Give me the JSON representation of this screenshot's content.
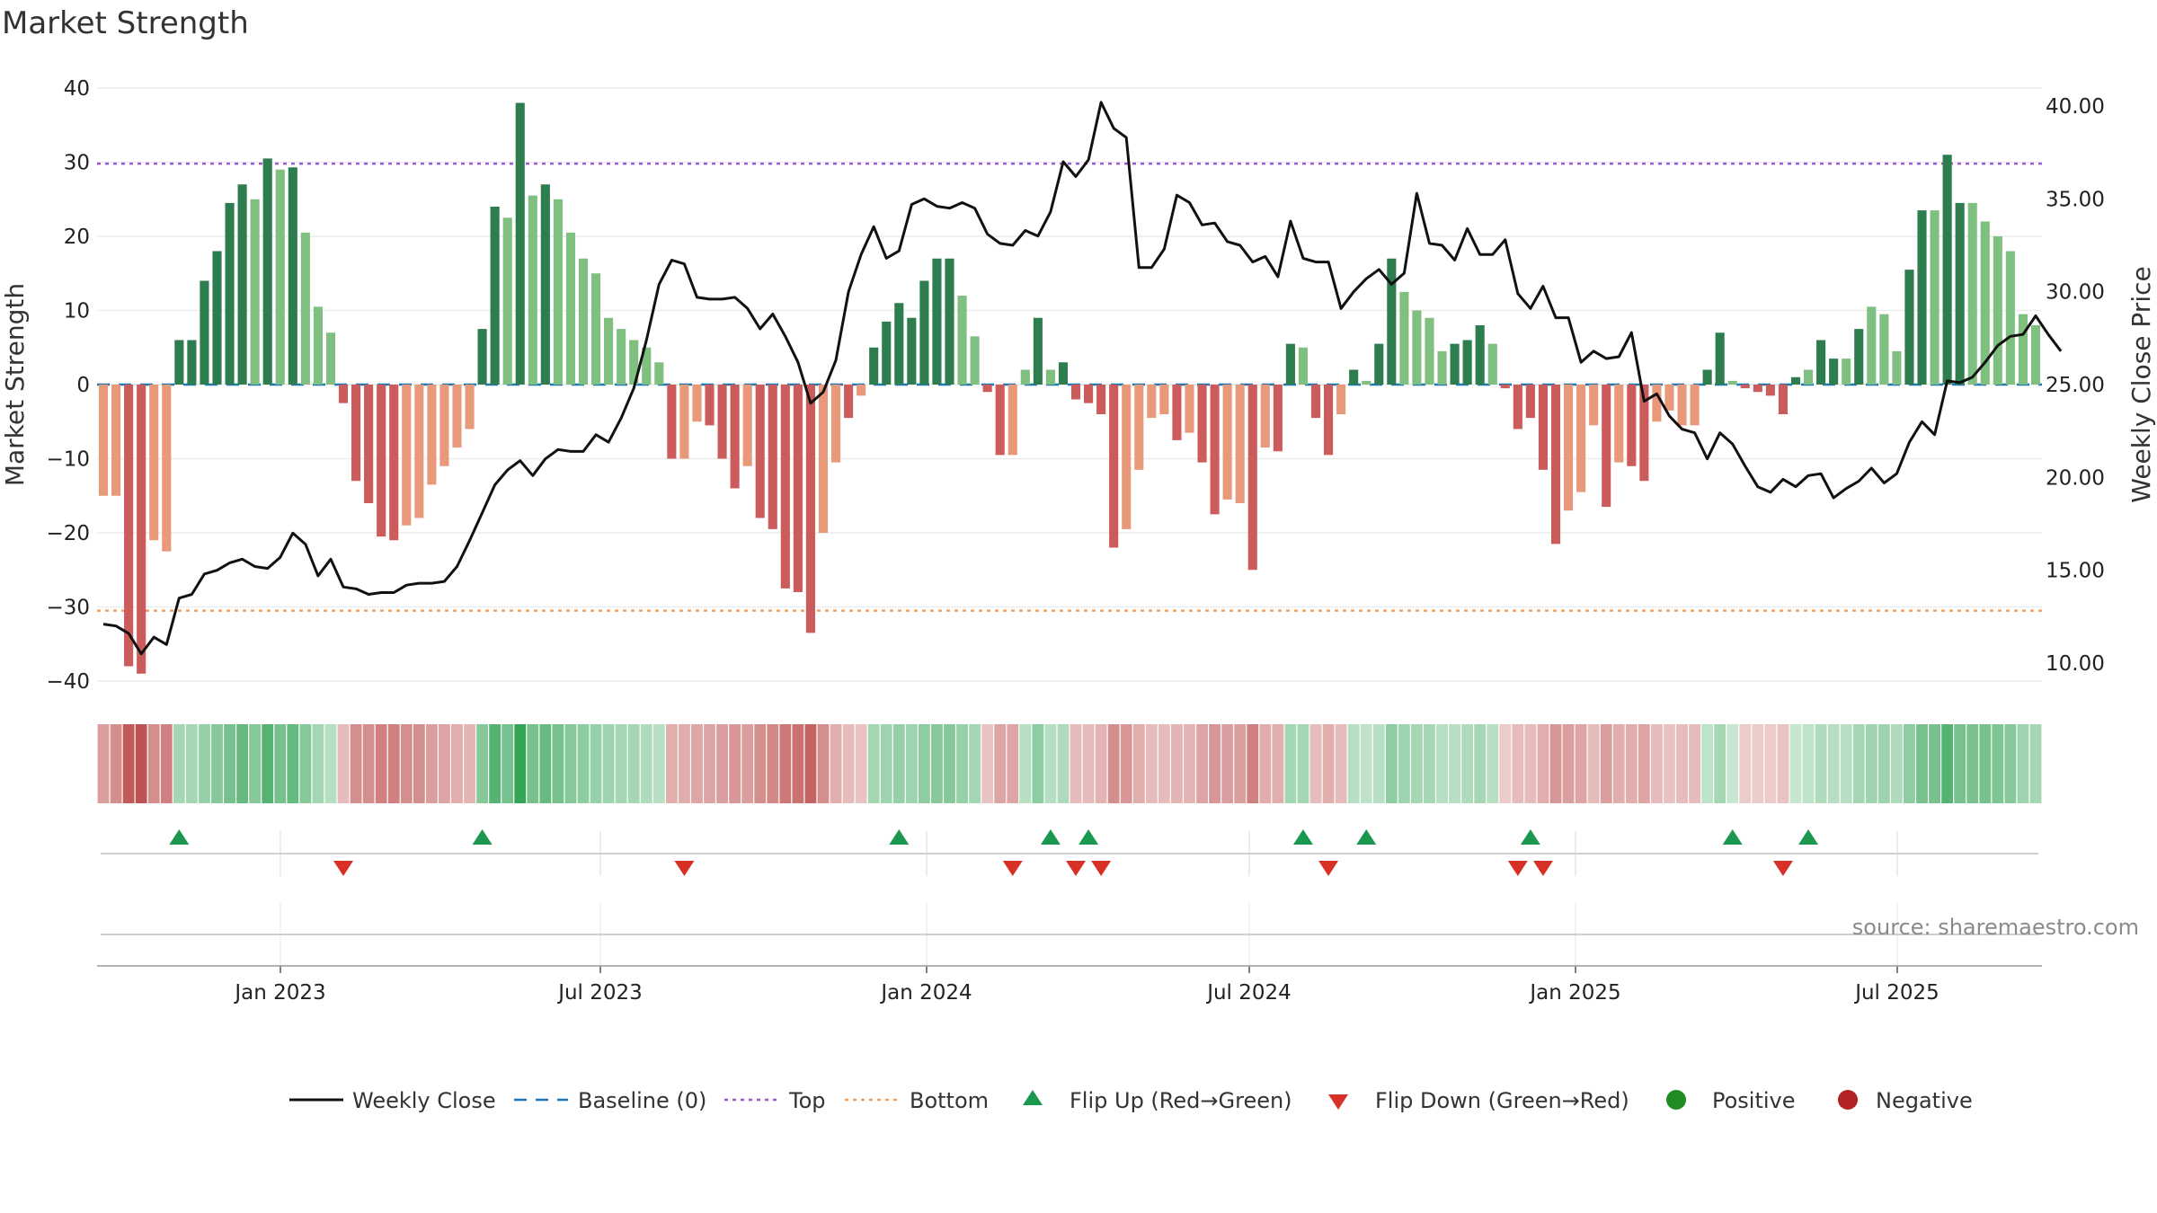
{
  "title": "Market Strength",
  "source_text": "source: sharemaestro.com",
  "colors": {
    "green_dark": "#2e7d4f",
    "green_light": "#7fbf7f",
    "red_dark": "#cc5c5c",
    "red_light": "#e8997a",
    "top_line": "#9b59d0",
    "bottom_line": "#f0a060",
    "baseline": "#1f77b4",
    "price_line": "#111111",
    "flip_up": "#1a9850",
    "flip_down": "#d73027",
    "positive": "#228b22",
    "negative": "#b22222"
  },
  "chart_data": {
    "type": "bar",
    "title": "Market Strength",
    "ylabel": "Market Strength",
    "y2label": "Weekly Close Price",
    "ylim": [
      -40,
      40
    ],
    "y2lim": [
      10,
      40
    ],
    "yticks": [
      "40",
      "30",
      "20",
      "10",
      "0",
      "−10",
      "−20",
      "−30",
      "−40"
    ],
    "y2ticks": [
      "40.00",
      "35.00",
      "30.00",
      "25.00",
      "20.00",
      "15.00",
      "10.00"
    ],
    "xticks": [
      "Jan 2023",
      "Jul 2023",
      "Jan 2024",
      "Jul 2024",
      "Jan 2025",
      "Jul 2025"
    ],
    "top_level": 29.8,
    "bottom_level": -30.5,
    "strength": [
      -15,
      -15,
      -38,
      -39,
      -21,
      -22.5,
      6,
      6,
      14,
      18,
      24.5,
      27,
      25,
      30.5,
      29,
      29.3,
      20.5,
      10.5,
      7,
      -2.5,
      -13,
      -16,
      -20.5,
      -21,
      -19,
      -18,
      -13.5,
      -11,
      -8.5,
      -6,
      7.5,
      24,
      22.5,
      38,
      25.5,
      27,
      25,
      20.5,
      17,
      15,
      9,
      7.5,
      6,
      5,
      3,
      -10,
      -10,
      -5,
      -5.5,
      -10,
      -14,
      -11,
      -18,
      -19.5,
      -27.5,
      -28,
      -33.5,
      -20,
      -10.5,
      -4.5,
      -1.5,
      5,
      8.5,
      11,
      9,
      14,
      17,
      17,
      12,
      6.5,
      -1,
      -9.5,
      -9.5,
      2,
      9,
      2,
      3,
      -2,
      -2.5,
      -4,
      -22,
      -19.5,
      -11.5,
      -4.5,
      -4,
      -7.5,
      -6.5,
      -10.5,
      -17.5,
      -15.5,
      -16,
      -25,
      -8.5,
      -9,
      5.5,
      5,
      -4.5,
      -9.5,
      -4,
      2,
      0.5,
      5.5,
      17,
      12.5,
      10,
      9,
      4.5,
      5.5,
      6,
      8,
      5.5,
      -0.5,
      -6,
      -4.5,
      -11.5,
      -21.5,
      -17,
      -14.5,
      -5.5,
      -16.5,
      -10.5,
      -11,
      -13,
      -5,
      -3.5,
      -5.5,
      -5.5,
      2,
      7,
      0.5,
      -0.5,
      -1,
      -1.5,
      -4,
      1,
      2,
      6,
      3.5,
      3.5,
      7.5,
      10.5,
      9.5,
      4.5,
      15.5,
      23.5,
      23.5,
      31,
      24.5,
      24.5,
      22,
      20,
      18,
      9.5,
      8
    ],
    "intensity": [
      "l",
      "l",
      "d",
      "d",
      "l",
      "l",
      "d",
      "d",
      "d",
      "d",
      "d",
      "d",
      "l",
      "d",
      "l",
      "d",
      "l",
      "l",
      "l",
      "d",
      "d",
      "d",
      "d",
      "d",
      "l",
      "l",
      "l",
      "l",
      "l",
      "l",
      "d",
      "d",
      "l",
      "d",
      "l",
      "d",
      "l",
      "l",
      "l",
      "l",
      "l",
      "l",
      "l",
      "l",
      "l",
      "d",
      "l",
      "l",
      "d",
      "d",
      "d",
      "l",
      "d",
      "d",
      "d",
      "d",
      "d",
      "l",
      "l",
      "d",
      "l",
      "d",
      "d",
      "d",
      "d",
      "d",
      "d",
      "d",
      "l",
      "l",
      "d",
      "d",
      "l",
      "l",
      "d",
      "l",
      "d",
      "d",
      "d",
      "d",
      "d",
      "l",
      "l",
      "l",
      "l",
      "d",
      "l",
      "d",
      "d",
      "l",
      "l",
      "d",
      "l",
      "d",
      "d",
      "l",
      "d",
      "d",
      "l",
      "d",
      "l",
      "d",
      "d",
      "l",
      "l",
      "l",
      "l",
      "d",
      "d",
      "d",
      "l",
      "d",
      "d",
      "d",
      "d",
      "d",
      "l",
      "l",
      "l",
      "d",
      "l",
      "d",
      "d",
      "l",
      "l",
      "l",
      "l",
      "d",
      "d",
      "l",
      "d",
      "d",
      "d",
      "d",
      "d",
      "l",
      "d",
      "d",
      "l",
      "d",
      "l",
      "l",
      "l",
      "d",
      "d",
      "l",
      "d",
      "d",
      "l",
      "l",
      "l",
      "l",
      "l",
      "l",
      "l",
      "l"
    ],
    "price": [
      12.1,
      12.0,
      11.6,
      10.5,
      11.4,
      11.0,
      13.5,
      13.7,
      14.8,
      15.0,
      15.4,
      15.6,
      15.2,
      15.1,
      15.7,
      17.0,
      16.4,
      14.7,
      15.6,
      14.1,
      14.0,
      13.7,
      13.8,
      13.8,
      14.2,
      14.3,
      14.3,
      14.4,
      15.2,
      16.6,
      18.1,
      19.6,
      20.4,
      20.9,
      20.1,
      21.0,
      21.5,
      21.4,
      21.4,
      22.3,
      21.9,
      23.2,
      24.8,
      27.4,
      30.4,
      31.7,
      31.5,
      29.7,
      29.6,
      29.6,
      29.7,
      29.1,
      28.0,
      28.8,
      27.6,
      26.2,
      24.0,
      24.6,
      26.3,
      30.0,
      32.0,
      33.5,
      31.8,
      32.2,
      34.7,
      35.0,
      34.6,
      34.5,
      34.8,
      34.5,
      33.1,
      32.6,
      32.5,
      33.3,
      33.0,
      34.3,
      37.0,
      36.2,
      37.1,
      40.2,
      38.8,
      38.3,
      31.3,
      31.3,
      32.3,
      35.2,
      34.8,
      33.6,
      33.7,
      32.7,
      32.5,
      31.6,
      31.9,
      30.8,
      33.8,
      31.8,
      31.6,
      31.6,
      29.1,
      30.0,
      30.7,
      31.2,
      30.4,
      31.0,
      35.3,
      32.6,
      32.5,
      31.7,
      33.4,
      32.0,
      32.0,
      32.8,
      29.9,
      29.1,
      30.3,
      28.6,
      28.6,
      26.2,
      26.8,
      26.4,
      26.5,
      27.8,
      24.1,
      24.5,
      23.3,
      22.6,
      22.4,
      21.0,
      22.4,
      21.8,
      20.6,
      19.5,
      19.2,
      19.9,
      19.5,
      20.1,
      20.2,
      18.9,
      19.4,
      19.8,
      20.5,
      19.7,
      20.2,
      21.9,
      23.0,
      22.3,
      25.2,
      25.1,
      25.4,
      26.2,
      27.1,
      27.6,
      27.7,
      28.7,
      27.7,
      26.8
    ],
    "flip_up_weeks": [
      6,
      30,
      63,
      75,
      78,
      95,
      100,
      113,
      129,
      135
    ],
    "flip_down_weeks": [
      19,
      46,
      72,
      77,
      79,
      97,
      112,
      114,
      133
    ],
    "heatmap": [
      0.4,
      0.5,
      0.85,
      0.9,
      0.5,
      0.6,
      0.3,
      0.3,
      0.4,
      0.5,
      0.6,
      0.7,
      0.5,
      0.8,
      0.6,
      0.7,
      0.5,
      0.3,
      0.2,
      0.2,
      0.5,
      0.5,
      0.6,
      0.6,
      0.5,
      0.5,
      0.4,
      0.35,
      0.3,
      0.25,
      0.5,
      0.8,
      0.6,
      1.0,
      0.6,
      0.7,
      0.6,
      0.5,
      0.45,
      0.4,
      0.35,
      0.3,
      0.3,
      0.25,
      0.2,
      0.3,
      0.3,
      0.35,
      0.35,
      0.4,
      0.45,
      0.4,
      0.5,
      0.55,
      0.65,
      0.7,
      0.8,
      0.5,
      0.3,
      0.2,
      0.15,
      0.3,
      0.35,
      0.4,
      0.35,
      0.45,
      0.5,
      0.5,
      0.4,
      0.3,
      0.15,
      0.35,
      0.35,
      0.2,
      0.45,
      0.2,
      0.25,
      0.2,
      0.2,
      0.25,
      0.5,
      0.45,
      0.3,
      0.2,
      0.2,
      0.25,
      0.25,
      0.35,
      0.45,
      0.4,
      0.4,
      0.6,
      0.3,
      0.3,
      0.3,
      0.3,
      0.2,
      0.3,
      0.2,
      0.2,
      0.15,
      0.2,
      0.45,
      0.35,
      0.3,
      0.3,
      0.2,
      0.2,
      0.25,
      0.3,
      0.2,
      0.1,
      0.2,
      0.2,
      0.3,
      0.45,
      0.4,
      0.35,
      0.2,
      0.4,
      0.3,
      0.3,
      0.35,
      0.2,
      0.15,
      0.2,
      0.2,
      0.15,
      0.3,
      0.1,
      0.1,
      0.1,
      0.1,
      0.15,
      0.1,
      0.15,
      0.25,
      0.2,
      0.2,
      0.3,
      0.35,
      0.35,
      0.25,
      0.45,
      0.6,
      0.6,
      0.8,
      0.6,
      0.6,
      0.6,
      0.55,
      0.5,
      0.35,
      0.3
    ]
  },
  "legend": [
    {
      "label": "Weekly Close",
      "kind": "line"
    },
    {
      "label": "Baseline (0)",
      "kind": "baseline"
    },
    {
      "label": "Top",
      "kind": "top"
    },
    {
      "label": "Bottom",
      "kind": "bottom"
    },
    {
      "label": "Flip Up (Red→Green)",
      "kind": "flip_up"
    },
    {
      "label": "Flip Down (Green→Red)",
      "kind": "flip_down"
    },
    {
      "label": "Positive",
      "kind": "positive"
    },
    {
      "label": "Negative",
      "kind": "negative"
    }
  ]
}
